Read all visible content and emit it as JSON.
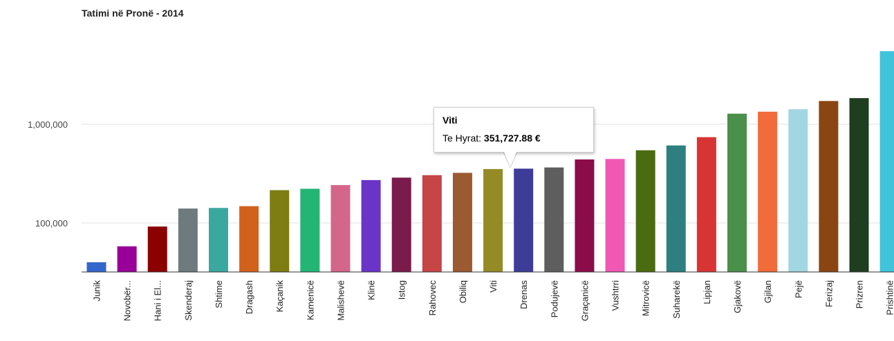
{
  "chart_data": {
    "type": "bar",
    "title": "Tatimi në Pronë - 2014",
    "xlabel": "",
    "ylabel": "",
    "yscale": "log",
    "ylim": [
      30000,
      7000000
    ],
    "yticks": [
      {
        "value": 100000,
        "label": "100,000"
      },
      {
        "value": 1000000,
        "label": "1,000,000"
      }
    ],
    "grid": true,
    "legend": "none",
    "categories": [
      "Junik",
      "Novobër...",
      "Hani i El...",
      "Skenderaj",
      "Shtime",
      "Dragash",
      "Kaçanik",
      "Kamenicë",
      "Malishevë",
      "Klinë",
      "Istog",
      "Rahovec",
      "Obiliq",
      "Viti",
      "Drenas",
      "Podujevë",
      "Graçanicë",
      "Vushtrri",
      "Mitrovicë",
      "Suharekë",
      "Lipjan",
      "Gjakovë",
      "Gjilan",
      "Pejë",
      "Ferizaj",
      "Prizren",
      "Prishtinë"
    ],
    "values": [
      40000,
      58000,
      92000,
      140000,
      142000,
      148000,
      215000,
      222000,
      242000,
      272000,
      288000,
      305000,
      322000,
      351727.88,
      355000,
      365000,
      440000,
      445000,
      545000,
      610000,
      740000,
      1280000,
      1340000,
      1420000,
      1720000,
      1840000,
      5500000
    ],
    "colors": [
      "#3366cc",
      "#990099",
      "#8b0000",
      "#6d7b7e",
      "#3ba8a0",
      "#d2611c",
      "#7d7d12",
      "#22b573",
      "#d4668a",
      "#6a34c8",
      "#7a1b4c",
      "#c64545",
      "#9c5a30",
      "#948b26",
      "#3d3d99",
      "#5e5e5e",
      "#8c0c4a",
      "#f058b4",
      "#4a6b10",
      "#2e8080",
      "#d93434",
      "#4a8f4a",
      "#f26b3a",
      "#a3d6e3",
      "#8b4513",
      "#1f3d1f",
      "#3fc4dc"
    ]
  },
  "tooltip": {
    "title": "Viti",
    "label": "Te Hyrat:",
    "value": "351,727.88 €"
  }
}
